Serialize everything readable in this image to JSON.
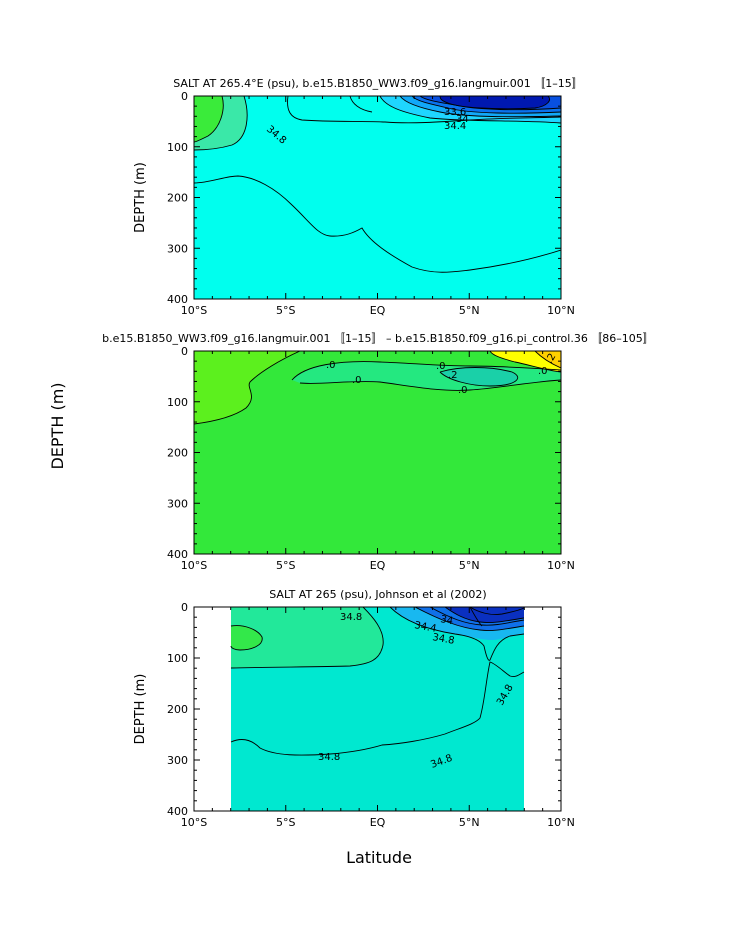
{
  "figure": {
    "shared_ylabel": "DEPTH (m)",
    "shared_xlabel": "Latitude"
  },
  "chart_data": [
    {
      "type": "heatmap",
      "title": "SALT AT 265.4°E (psu), b.e15.B1850_WW3.f09_g16.langmuir.001 〚1–15〛",
      "xlabel": "",
      "ylabel": "DEPTH (m)",
      "xlim": [
        -10,
        10
      ],
      "ylim": [
        400,
        0
      ],
      "x_ticks": [
        -10,
        -5,
        0,
        5,
        10
      ],
      "x_tick_labels": [
        "10°S",
        "5°S",
        "EQ",
        "5°N",
        "10°N"
      ],
      "y_ticks": [
        0,
        100,
        200,
        300,
        400
      ],
      "y_tick_labels": [
        "0",
        "100",
        "200",
        "300",
        "400"
      ],
      "contour_labels": [
        "34.8",
        "33.6",
        "34",
        "34.4"
      ],
      "colors": {
        "background": "#00ffee",
        "high": "#3ae84a",
        "mid_low": "#1fc8ff",
        "low": "#0a50e6",
        "lowest": "#0018b0"
      }
    },
    {
      "type": "heatmap",
      "title": "b.e15.B1850_WW3.f09_g16.langmuir.001 〚1–15〛 – b.e15.B1850.f09_g16.pi_control.36 〚86–105〛",
      "xlabel": "",
      "ylabel": "",
      "xlim": [
        -10,
        10
      ],
      "ylim": [
        400,
        0
      ],
      "x_ticks": [
        -10,
        -5,
        0,
        5,
        10
      ],
      "x_tick_labels": [
        "10°S",
        "5°S",
        "EQ",
        "5°N",
        "10°N"
      ],
      "y_ticks": [
        0,
        100,
        200,
        300,
        400
      ],
      "y_tick_labels": [
        "0",
        "100",
        "200",
        "300",
        "400"
      ],
      "contour_labels": [
        ".0",
        ".0",
        ".0",
        ".0",
        ".2",
        ".0",
        ".2"
      ],
      "colors": {
        "background": "#33e83a",
        "high": "#5cf01e",
        "pos": "#ffff00",
        "pos2": "#ffd500",
        "neg": "#22e896"
      }
    },
    {
      "type": "heatmap",
      "title": "SALT AT 265 (psu), Johnson et al (2002)",
      "xlabel": "Latitude",
      "ylabel": "DEPTH (m)",
      "xlim": [
        -10,
        10
      ],
      "ylim": [
        400,
        0
      ],
      "data_xlim": [
        -8,
        8
      ],
      "x_ticks": [
        -10,
        -5,
        0,
        5,
        10
      ],
      "x_tick_labels": [
        "10°S",
        "5°S",
        "EQ",
        "5°N",
        "10°N"
      ],
      "y_ticks": [
        0,
        100,
        200,
        300,
        400
      ],
      "y_tick_labels": [
        "0",
        "100",
        "200",
        "300",
        "400"
      ],
      "contour_labels": [
        "34.8",
        "34.4",
        "34",
        "34.8",
        "34.8",
        "34.8",
        "34.8"
      ],
      "colors": {
        "background": "#00e8d0",
        "high": "#33e86a",
        "high2": "#1ee89a",
        "low": "#1040e0",
        "lowest": "#0a20b0"
      }
    }
  ]
}
